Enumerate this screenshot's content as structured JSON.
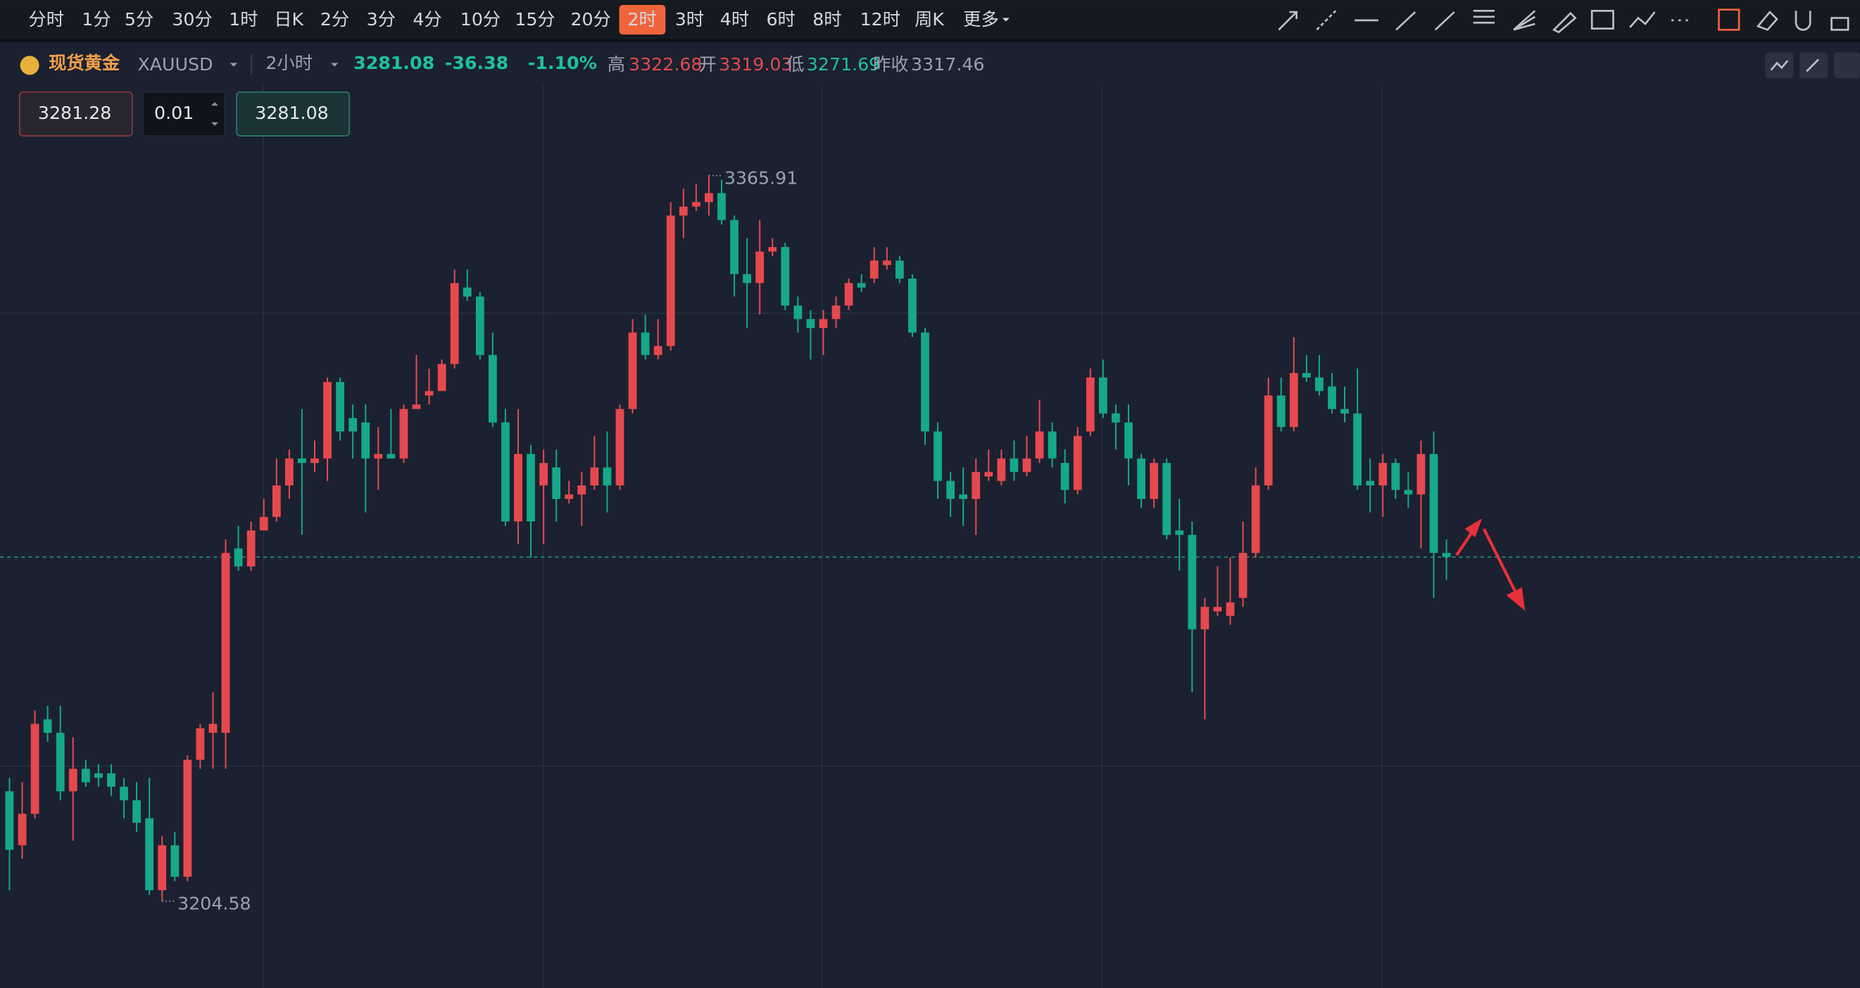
{
  "toolbar": {
    "periods": [
      "分时",
      "1分",
      "5分",
      "30分",
      "1时",
      "日K",
      "2分",
      "3分",
      "4分",
      "10分",
      "15分",
      "20分",
      "2时",
      "3时",
      "4时",
      "6时",
      "8时",
      "12时",
      "周K",
      "更多"
    ],
    "active": 12
  },
  "header": {
    "name": "现货黄金",
    "symbol": "XAUUSD",
    "period": "2小时",
    "last": "3281.08",
    "change": "-36.38",
    "change_pct": "-1.10%",
    "high_label": "高",
    "high": "3322.68",
    "open_label": "开",
    "open": "3319.03",
    "low_label": "低",
    "low": "3271.69",
    "prev_label": "昨收",
    "prev": "3317.46"
  },
  "order": {
    "sell": "3281.28",
    "lots": "0.01",
    "buy": "3281.08"
  },
  "chart_data": {
    "type": "candlestick",
    "ylim": [
      3185.3,
      3404.9
    ],
    "up_color": "#e5494f",
    "down_color": "#16a888",
    "open": [
      3229,
      3217,
      3224,
      3245,
      3242,
      3229,
      3234,
      3233,
      3233,
      3230,
      3227,
      3223,
      3207,
      3217,
      3210,
      3236,
      3242,
      3242,
      3283,
      3279,
      3287,
      3290,
      3297,
      3303,
      3302,
      3303,
      3320,
      3312,
      3311,
      3303,
      3304,
      3303,
      3314,
      3317,
      3318,
      3324,
      3341,
      3339,
      3326,
      3311,
      3289,
      3304,
      3297,
      3301,
      3294,
      3295,
      3297,
      3301,
      3297,
      3314,
      3331,
      3326,
      3328,
      3357,
      3359,
      3360,
      3362,
      3356,
      3344,
      3342,
      3349,
      3350,
      3337,
      3334,
      3332,
      3334,
      3337,
      3342,
      3343,
      3346,
      3347,
      3343,
      3331,
      3309,
      3298,
      3295,
      3294,
      3299,
      3298,
      3303,
      3300,
      3303,
      3309,
      3302,
      3296,
      3309,
      3321,
      3313,
      3311,
      3303,
      3294,
      3302,
      3287,
      3286,
      3265,
      3269,
      3268,
      3272,
      3282,
      3297,
      3317,
      3310,
      3322,
      3321,
      3319,
      3314,
      3313,
      3298,
      3297,
      3302,
      3296,
      3295,
      3304,
      3282
    ],
    "high": [
      3232,
      3231,
      3247,
      3248,
      3248,
      3241,
      3236,
      3235,
      3235,
      3232,
      3231,
      3232,
      3219,
      3220,
      3237,
      3244,
      3251,
      3285,
      3288,
      3289,
      3294,
      3303,
      3305,
      3314,
      3307,
      3321,
      3321,
      3315,
      3315,
      3310,
      3314,
      3315,
      3326,
      3323,
      3325,
      3345,
      3345,
      3340,
      3331,
      3314,
      3314,
      3306,
      3305,
      3305,
      3298,
      3300,
      3308,
      3309,
      3315,
      3334,
      3335,
      3334,
      3360,
      3363,
      3364,
      3365.91,
      3365,
      3357,
      3352,
      3356,
      3352,
      3351,
      3339,
      3336,
      3336,
      3339,
      3343,
      3344,
      3350,
      3350,
      3348,
      3344,
      3332,
      3311,
      3300,
      3301,
      3303,
      3305,
      3305,
      3307,
      3308,
      3316,
      3311,
      3305,
      3310,
      3323,
      3325,
      3315,
      3315,
      3304,
      3303,
      3303,
      3294,
      3289,
      3272,
      3279,
      3281,
      3289,
      3301,
      3321,
      3321,
      3330,
      3326,
      3326,
      3322,
      3319,
      3323,
      3303,
      3304,
      3303,
      3300,
      3307,
      3309,
      3285
    ],
    "low": [
      3207,
      3214,
      3223,
      3240,
      3227,
      3218,
      3230,
      3230,
      3228,
      3223,
      3220,
      3206,
      3204.58,
      3209,
      3209,
      3234,
      3234,
      3234,
      3278,
      3278,
      3287,
      3289,
      3294,
      3286,
      3300,
      3298,
      3307,
      3303,
      3291,
      3296,
      3303,
      3302,
      3314,
      3315,
      3318,
      3323,
      3338,
      3325,
      3310,
      3288,
      3284,
      3281,
      3284,
      3289,
      3293,
      3288,
      3296,
      3291,
      3296,
      3313,
      3325,
      3325,
      3327,
      3352,
      3358,
      3357,
      3355,
      3339,
      3332,
      3335,
      3348,
      3336,
      3331,
      3325,
      3326,
      3332,
      3336,
      3340,
      3342,
      3345,
      3342,
      3330,
      3306,
      3294,
      3290,
      3288,
      3286,
      3298,
      3297,
      3298,
      3299,
      3302,
      3301,
      3293,
      3295,
      3308,
      3312,
      3305,
      3297,
      3292,
      3292,
      3285,
      3278,
      3251,
      3245,
      3268,
      3266,
      3270,
      3281,
      3296,
      3309,
      3309,
      3320,
      3317,
      3313,
      3311,
      3296,
      3291,
      3290,
      3294,
      3292,
      3283,
      3272,
      3276
    ],
    "close": [
      3216,
      3224,
      3244,
      3242,
      3229,
      3234,
      3231,
      3232,
      3230,
      3227,
      3222,
      3207,
      3217,
      3210,
      3236,
      3243,
      3244,
      3282,
      3279,
      3287,
      3290,
      3297,
      3303,
      3302,
      3303,
      3320,
      3309,
      3309,
      3303,
      3304,
      3303,
      3314,
      3315,
      3318,
      3324,
      3342,
      3339,
      3326,
      3311,
      3289,
      3304,
      3289,
      3302,
      3294,
      3295,
      3297,
      3301,
      3297,
      3314,
      3331,
      3326,
      3328,
      3357,
      3359,
      3360,
      3362,
      3356,
      3344,
      3342,
      3349,
      3350,
      3337,
      3334,
      3332,
      3334,
      3337,
      3342,
      3341,
      3347,
      3347,
      3343,
      3331,
      3309,
      3298,
      3294,
      3294,
      3300,
      3300,
      3303,
      3300,
      3303,
      3309,
      3303,
      3296,
      3308,
      3321,
      3313,
      3311,
      3303,
      3294,
      3302,
      3286,
      3286,
      3265,
      3270,
      3270,
      3271,
      3282,
      3297,
      3317,
      3310,
      3322,
      3321,
      3318,
      3314,
      3313,
      3297,
      3297,
      3302,
      3296,
      3295,
      3304,
      3282,
      3281.08
    ]
  }
}
